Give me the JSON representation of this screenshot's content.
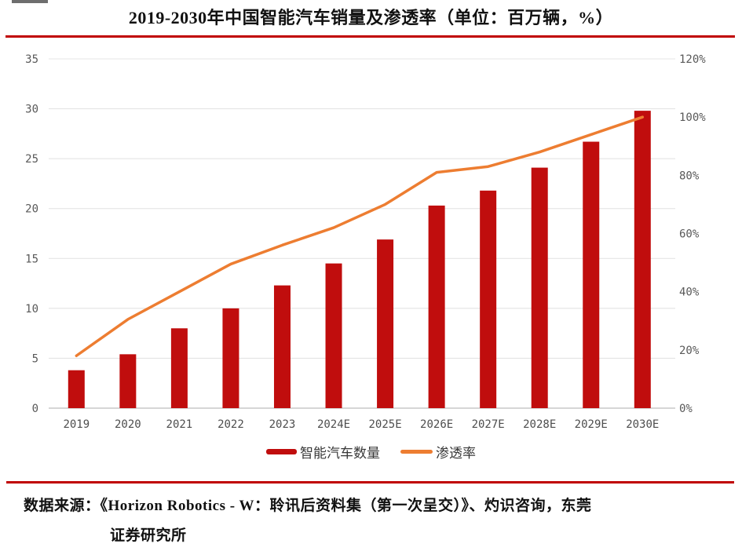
{
  "header": {
    "title": "2019-2030年中国智能汽车销量及渗透率（单位：百万辆，%）"
  },
  "chart_data": {
    "type": "bar",
    "combo": "bar+line dual-axis",
    "title": "2019-2030年中国智能汽车销量及渗透率（单位：百万辆，%）",
    "categories": [
      "2019",
      "2020",
      "2021",
      "2022",
      "2023",
      "2024E",
      "2025E",
      "2026E",
      "2027E",
      "2028E",
      "2029E",
      "2030E"
    ],
    "series": [
      {
        "name": "智能汽车数量",
        "type": "bar",
        "axis": "left",
        "unit": "百万辆",
        "values": [
          3.8,
          5.4,
          8.0,
          10.0,
          12.3,
          14.5,
          16.9,
          20.3,
          21.8,
          24.1,
          26.7,
          29.8
        ]
      },
      {
        "name": "渗透率",
        "type": "line",
        "axis": "right",
        "unit": "%",
        "values": [
          18,
          30.5,
          40,
          49.5,
          56,
          62,
          70,
          81,
          83,
          88,
          94,
          100
        ]
      }
    ],
    "left_axis": {
      "min": 0,
      "max": 35,
      "step": 5,
      "tick_labels": [
        "0",
        "5",
        "10",
        "15",
        "20",
        "25",
        "30",
        "35"
      ]
    },
    "right_axis": {
      "min": 0,
      "max": 120,
      "step": 20,
      "tick_labels": [
        "0%",
        "20%",
        "40%",
        "60%",
        "80%",
        "100%",
        "120%"
      ]
    },
    "grid": true,
    "legend_position": "bottom"
  },
  "legend": {
    "bar_label": "智能汽车数量",
    "line_label": "渗透率"
  },
  "source": {
    "line1": "数据来源：《Horizon Robotics - W：聆讯后资料集（第一次呈交）》、灼识咨询，东莞",
    "line2": "证券研究所"
  },
  "colors": {
    "bar_red": "#C00D0D",
    "line_orange": "#ED7D31",
    "divider_red": "#C00000",
    "grid_gray": "#E4E4E4",
    "axis_gray": "#C8C8C8",
    "tick_text": "#595959",
    "legend_text": "#383838"
  }
}
